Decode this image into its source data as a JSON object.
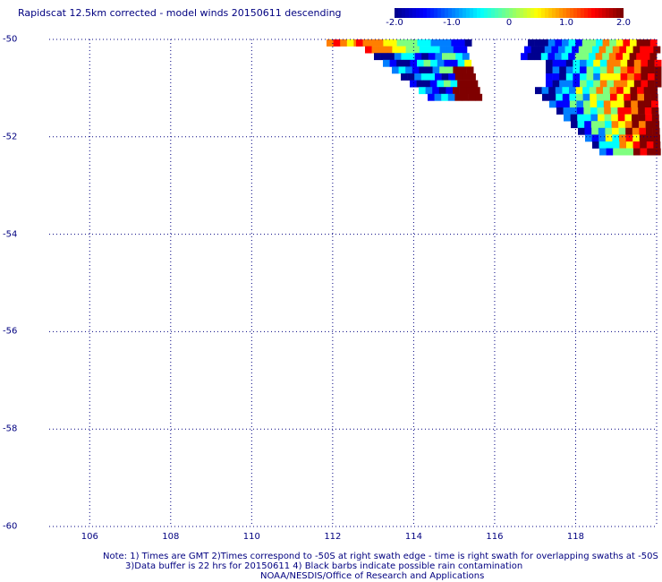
{
  "title": "Rapidscat 12.5km corrected - model winds 20150611 descending",
  "colorbar": {
    "ticks": [
      "-2.0",
      "-1.0",
      "0",
      "1.0",
      "2.0"
    ],
    "tick_values": [
      -2.0,
      -1.0,
      0,
      1.0,
      2.0
    ],
    "range": [
      -2.0,
      2.0
    ],
    "colors": [
      "#00008f",
      "#0000ff",
      "#007fff",
      "#00ffff",
      "#7fff7f",
      "#ffff00",
      "#ff7f00",
      "#ff0000",
      "#7f0000"
    ]
  },
  "map": {
    "lat_labels": [
      "-50",
      "-52",
      "-54",
      "-56",
      "-58",
      "-60"
    ],
    "lat_values": [
      -50,
      -52,
      -54,
      -56,
      -58,
      -60
    ],
    "lon_labels": [
      "106",
      "108",
      "110",
      "112",
      "114",
      "116",
      "118"
    ],
    "lon_values": [
      106,
      108,
      110,
      112,
      114,
      116,
      118
    ],
    "lon_range": [
      105.0,
      120.0
    ],
    "lat_range": [
      -50.0,
      -60.0
    ],
    "grid_color": "#000080"
  },
  "notes": {
    "line1": "Note: 1) Times are GMT 2)Times correspond to -50S at right swath edge - time is right swath for overlapping swaths at -50S",
    "line2": "3)Data buffer is 22 hrs for 20150611 4) Black barbs indicate possible rain contamination",
    "line3": "NOAA/NESDIS/Office of Research and Applications"
  }
}
